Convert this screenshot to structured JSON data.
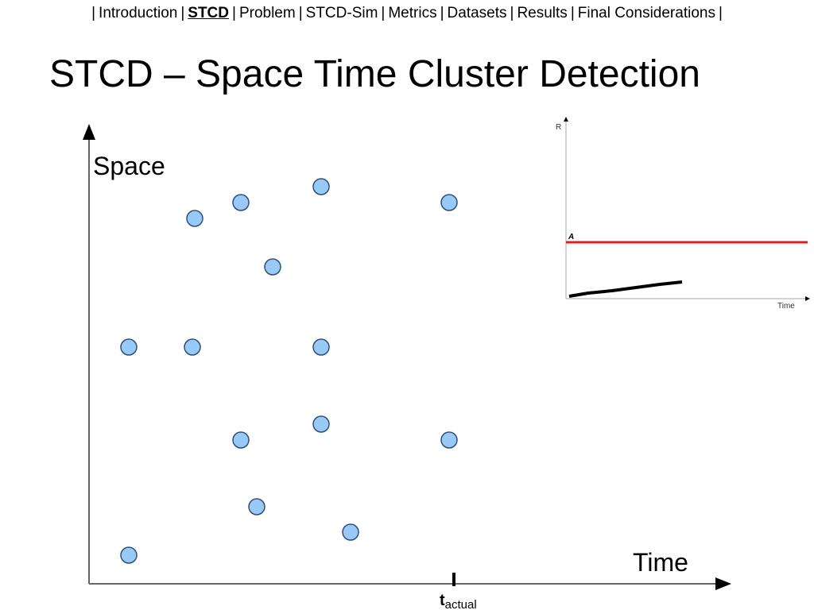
{
  "nav": {
    "separator": "|",
    "items": [
      "Introduction",
      "STCD",
      "Problem",
      "STCD-Sim",
      "Metrics",
      "Datasets",
      "Results",
      "Final Considerations"
    ],
    "current": "STCD"
  },
  "title": "STCD – Space Time Cluster Detection",
  "diagram": {
    "y_label": "Space",
    "x_label": "Time",
    "marker_label": "t",
    "marker_subscript": "actual"
  },
  "inset": {
    "y_label": "R",
    "threshold_label": "A",
    "x_label": "Time"
  }
}
